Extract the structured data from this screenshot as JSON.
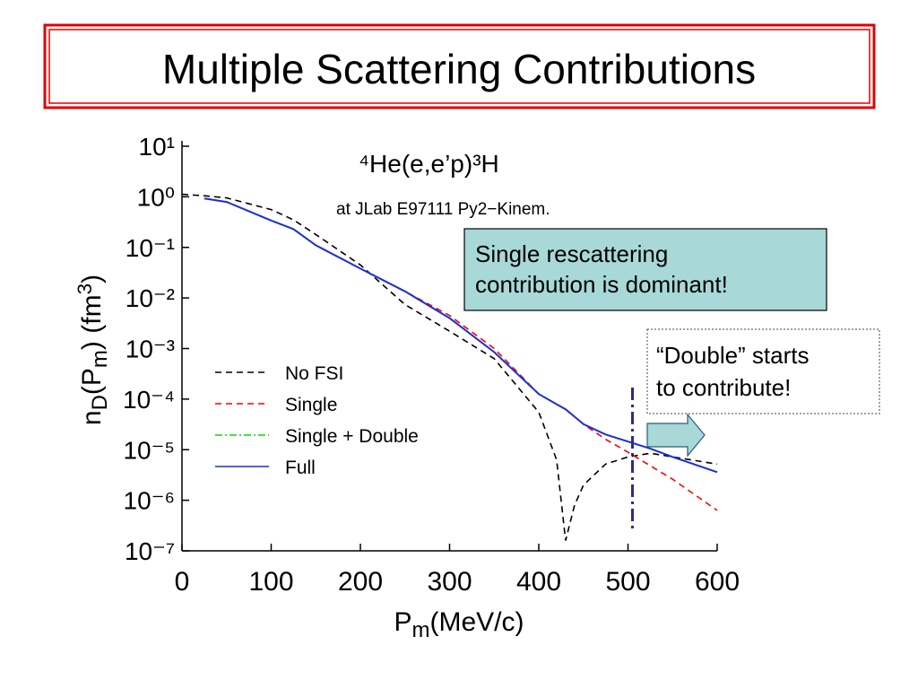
{
  "slide": {
    "title": "Multiple Scattering Contributions"
  },
  "chart_data": {
    "type": "line",
    "title": "⁴He(e,e’p)³H",
    "subtitle": "at JLab E97111 Py2−Kinem.",
    "xlabel_parts": [
      {
        "text": "P"
      },
      {
        "text": "m",
        "shift": "sub"
      },
      {
        "text": "(MeV/c)"
      }
    ],
    "ylabel_parts": [
      {
        "text": "n"
      },
      {
        "text": "D",
        "shift": "sub"
      },
      {
        "text": "(P"
      },
      {
        "text": "m",
        "shift": "sub"
      },
      {
        "text": ") (fm"
      },
      {
        "text": "3",
        "shift": "super"
      },
      {
        "text": ")"
      }
    ],
    "log_y": true,
    "x": [
      0,
      25,
      50,
      100,
      125,
      150,
      200,
      250,
      300,
      350,
      400,
      420,
      430,
      440,
      450,
      475,
      500,
      525,
      550,
      600
    ],
    "series": [
      {
        "name": "No FSI",
        "color": "#000000",
        "dash": "dashed",
        "values": [
          1.12,
          1.05,
          0.95,
          0.56,
          0.35,
          0.18,
          0.045,
          0.0074,
          0.0022,
          0.00063,
          5.5e-05,
          6.3e-06,
          1.6e-07,
          7.9e-07,
          2e-06,
          5.2e-06,
          7.2e-06,
          8.5e-06,
          7.2e-06,
          5.2e-06
        ]
      },
      {
        "name": "Single",
        "color": "#ff0000",
        "dash": "dashed",
        "values": [
          null,
          0.93,
          0.79,
          0.34,
          0.23,
          0.11,
          0.038,
          0.0135,
          0.0045,
          0.001,
          0.000126,
          7.9e-05,
          6.3e-05,
          4.5e-05,
          3.2e-05,
          1.6e-05,
          8.9e-06,
          4.8e-06,
          2.6e-06,
          6.3e-07
        ]
      },
      {
        "name": "Single + Double",
        "color": "#00dd00",
        "dash": "dashdot",
        "values": [
          null,
          0.93,
          0.79,
          0.34,
          0.23,
          0.11,
          0.038,
          0.0135,
          0.004,
          0.00085,
          0.000126,
          7.9e-05,
          6.3e-05,
          4.5e-05,
          3.2e-05,
          2e-05,
          1.45e-05,
          1.05e-05,
          7.2e-06,
          3.6e-06
        ]
      },
      {
        "name": "Full",
        "color": "#1c2fd8",
        "dash": "solid",
        "values": [
          null,
          0.93,
          0.79,
          0.34,
          0.23,
          0.11,
          0.038,
          0.0135,
          0.004,
          0.00085,
          0.000126,
          7.9e-05,
          6.3e-05,
          4.5e-05,
          3.2e-05,
          2e-05,
          1.45e-05,
          1.05e-05,
          7.2e-06,
          3.6e-06
        ]
      }
    ],
    "xlim": [
      0,
      600
    ],
    "xticks": [
      0,
      100,
      200,
      300,
      400,
      500,
      600
    ],
    "ylim": [
      1e-07,
      10
    ],
    "yticks": [
      {
        "value": 10,
        "label": "10¹"
      },
      {
        "value": 1,
        "label": "10⁰"
      },
      {
        "value": 0.1,
        "label": "10⁻¹"
      },
      {
        "value": 0.01,
        "label": "10⁻²"
      },
      {
        "value": 0.001,
        "label": "10⁻³"
      },
      {
        "value": 0.0001,
        "label": "10⁻⁴"
      },
      {
        "value": 1e-05,
        "label": "10⁻⁵"
      },
      {
        "value": 1e-06,
        "label": "10⁻⁶"
      },
      {
        "value": 1e-07,
        "label": "10⁻⁷"
      }
    ],
    "vline": {
      "x": 505,
      "color": "#2a2a90"
    },
    "annotations": [
      {
        "lines": [
          "Single rescattering",
          "contribution is dominant!"
        ]
      },
      {
        "lines": [
          "“Double” starts",
          "to contribute!"
        ]
      }
    ]
  }
}
